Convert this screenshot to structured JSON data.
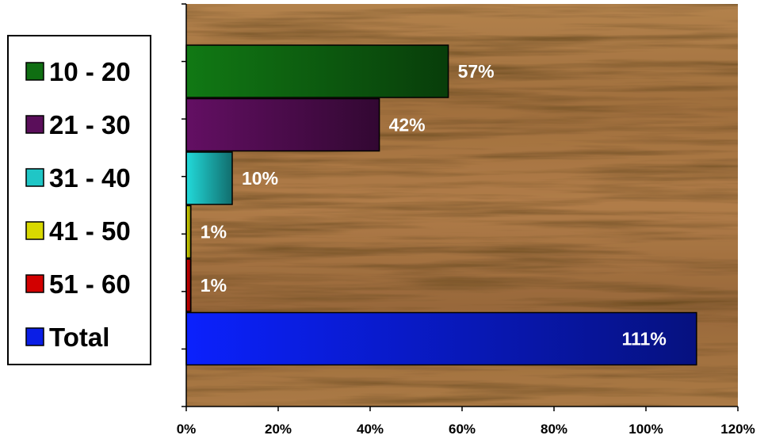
{
  "chart_data": {
    "type": "bar",
    "orientation": "horizontal",
    "categories": [
      "10 - 20",
      "21 - 30",
      "31 - 40",
      "41 - 50",
      "51 - 60",
      "Total"
    ],
    "values": [
      57,
      42,
      10,
      1,
      1,
      111
    ],
    "data_labels": [
      "57%",
      "42%",
      "10%",
      "1%",
      "1%",
      "111%"
    ],
    "colors": [
      "#0f6e12",
      "#5a0e5a",
      "#1fc6c6",
      "#d8d800",
      "#d20000",
      "#0a1ee6"
    ],
    "x_ticks": [
      "0%",
      "20%",
      "40%",
      "60%",
      "80%",
      "100%",
      "120%"
    ],
    "xlim": [
      0,
      120
    ],
    "title": "",
    "xlabel": "",
    "ylabel": "",
    "grid": false,
    "legend_position": "left",
    "plot_background": "wood-texture"
  }
}
